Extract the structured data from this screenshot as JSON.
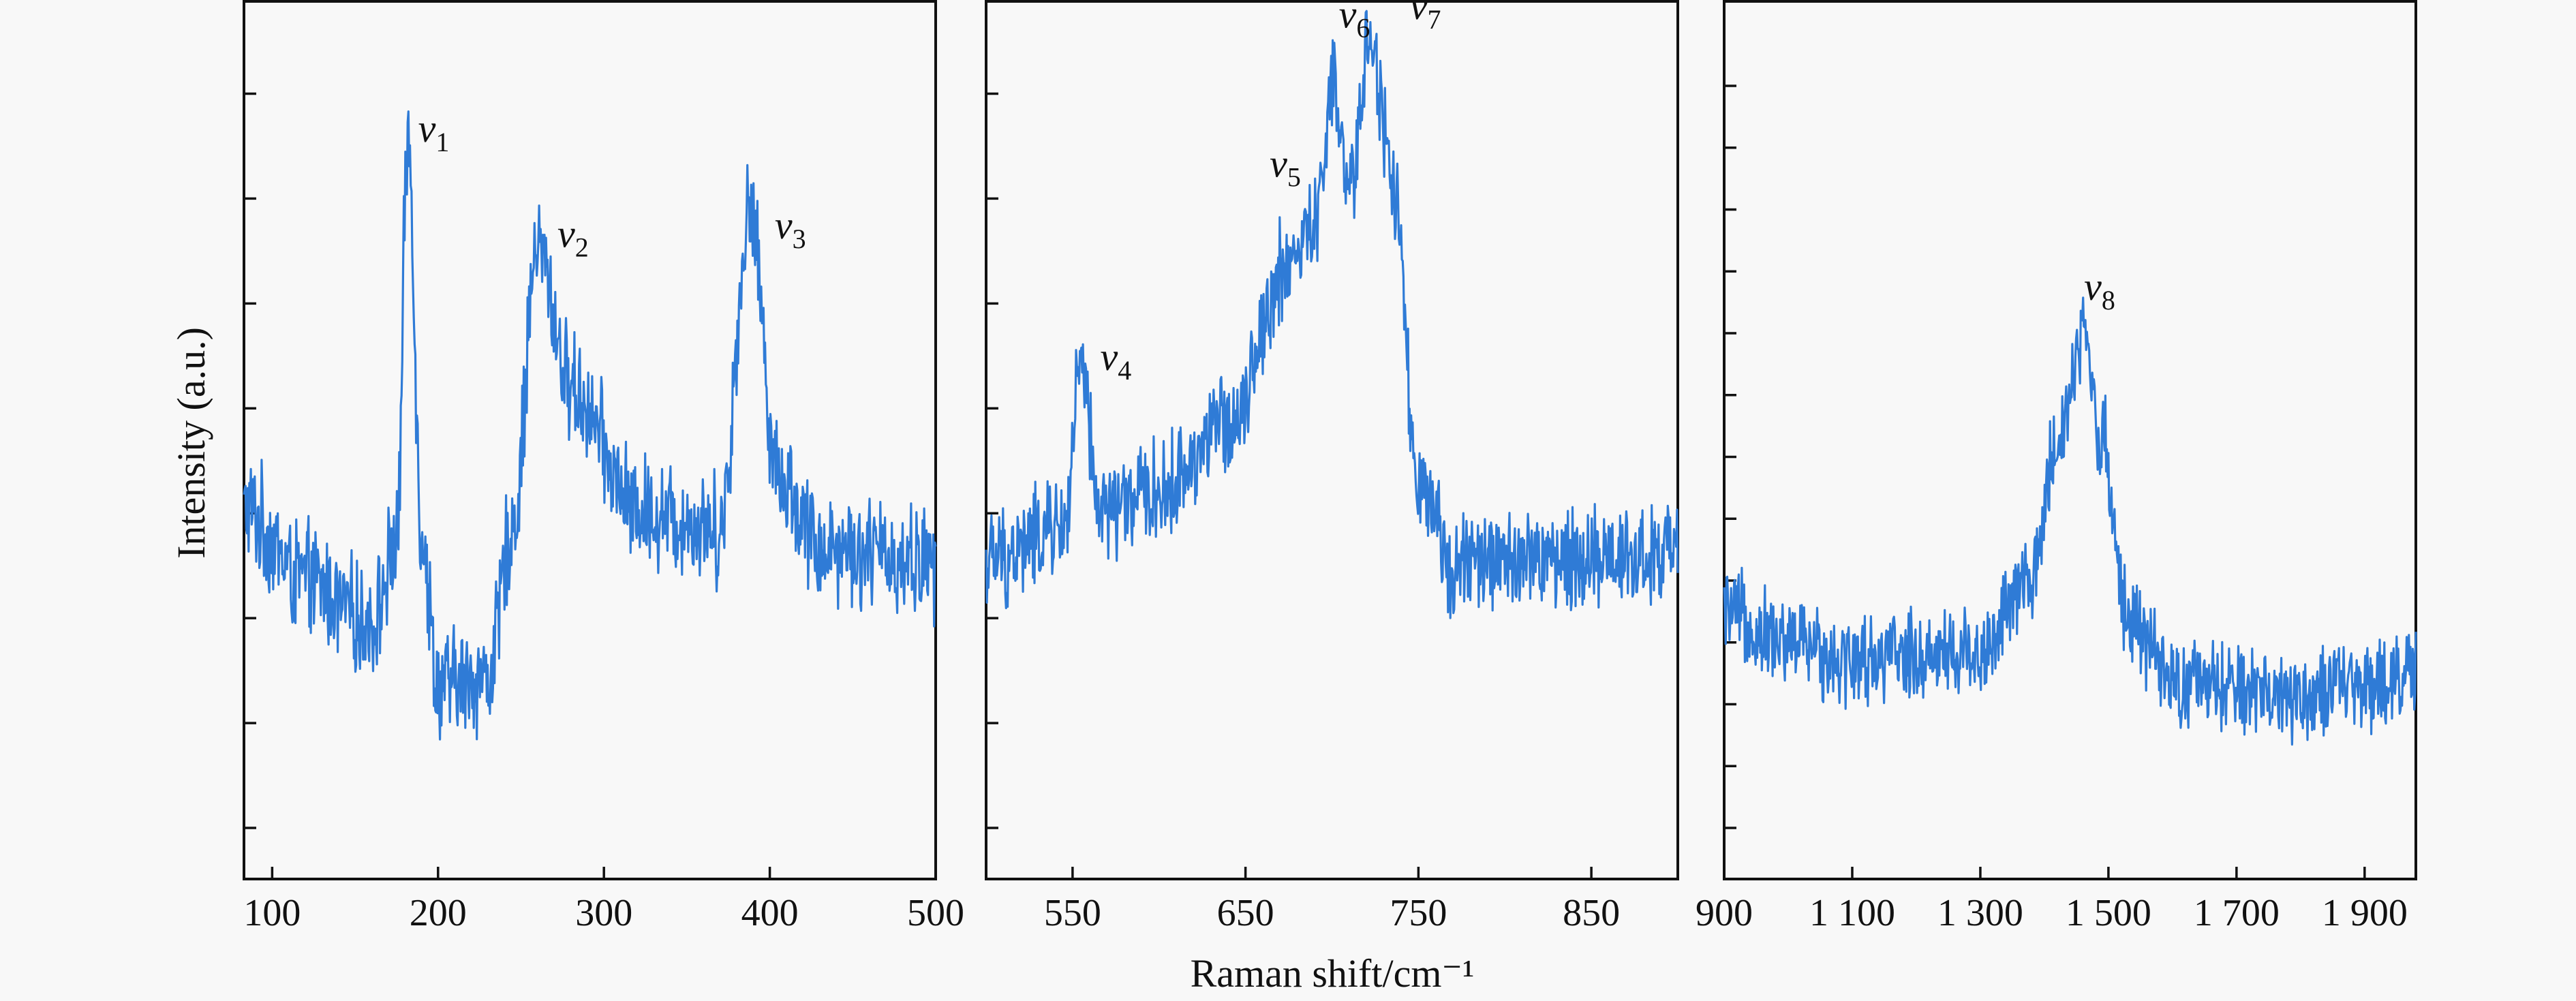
{
  "chart_data": [
    {
      "type": "line",
      "xlim": [
        83,
        500
      ],
      "ylim": [
        0,
        1
      ],
      "xticks": [
        100,
        200,
        300,
        400,
        500
      ],
      "xticklabels": [
        "100",
        "200",
        "300",
        "400",
        "500"
      ],
      "y_tick_count": 8,
      "series_color": "#2f7bd6",
      "baseline": 0.36,
      "noise_amplitude": 0.055,
      "profile": [
        {
          "x": 83,
          "y": 0.42
        },
        {
          "x": 120,
          "y": 0.34
        },
        {
          "x": 160,
          "y": 0.29
        },
        {
          "x": 175,
          "y": 0.38
        },
        {
          "x": 182,
          "y": 0.85
        },
        {
          "x": 190,
          "y": 0.4
        },
        {
          "x": 200,
          "y": 0.22
        },
        {
          "x": 230,
          "y": 0.23
        },
        {
          "x": 245,
          "y": 0.4
        },
        {
          "x": 260,
          "y": 0.72
        },
        {
          "x": 280,
          "y": 0.56
        },
        {
          "x": 320,
          "y": 0.42
        },
        {
          "x": 370,
          "y": 0.4
        },
        {
          "x": 388,
          "y": 0.76
        },
        {
          "x": 405,
          "y": 0.46
        },
        {
          "x": 430,
          "y": 0.38
        },
        {
          "x": 500,
          "y": 0.36
        }
      ],
      "annotations": [
        {
          "symbol": "v",
          "sub": "1",
          "x": 188,
          "y": 0.84
        },
        {
          "symbol": "v",
          "sub": "2",
          "x": 272,
          "y": 0.72
        },
        {
          "symbol": "v",
          "sub": "3",
          "x": 403,
          "y": 0.73
        }
      ]
    },
    {
      "type": "line",
      "xlim": [
        500,
        900
      ],
      "ylim": [
        0,
        1
      ],
      "xticks": [
        550,
        650,
        750,
        850
      ],
      "xticklabels": [
        "550",
        "650",
        "750",
        "850"
      ],
      "y_tick_count": 8,
      "series_color": "#2f7bd6",
      "baseline": 0.36,
      "noise_amplitude": 0.05,
      "profile": [
        {
          "x": 500,
          "y": 0.36
        },
        {
          "x": 545,
          "y": 0.4
        },
        {
          "x": 555,
          "y": 0.58
        },
        {
          "x": 565,
          "y": 0.42
        },
        {
          "x": 600,
          "y": 0.44
        },
        {
          "x": 640,
          "y": 0.52
        },
        {
          "x": 675,
          "y": 0.7
        },
        {
          "x": 690,
          "y": 0.74
        },
        {
          "x": 700,
          "y": 0.9
        },
        {
          "x": 710,
          "y": 0.78
        },
        {
          "x": 722,
          "y": 0.96
        },
        {
          "x": 735,
          "y": 0.8
        },
        {
          "x": 750,
          "y": 0.44
        },
        {
          "x": 770,
          "y": 0.36
        },
        {
          "x": 900,
          "y": 0.37
        }
      ],
      "annotations": [
        {
          "symbol": "v",
          "sub": "4",
          "x": 566,
          "y": 0.58
        },
        {
          "symbol": "v",
          "sub": "5",
          "x": 664,
          "y": 0.8
        },
        {
          "symbol": "v",
          "sub": "6",
          "x": 704,
          "y": 0.97
        },
        {
          "symbol": "v",
          "sub": "7",
          "x": 745,
          "y": 0.98
        }
      ]
    },
    {
      "type": "line",
      "xlim": [
        900,
        1980
      ],
      "ylim": [
        0,
        1
      ],
      "xticks": [
        900,
        1100,
        1300,
        1500,
        1700,
        1900
      ],
      "xticklabels": [
        "900",
        "1 100",
        "1 300",
        "1 500",
        "1 700",
        "1 900"
      ],
      "y_tick_count": 13,
      "series_color": "#2f7bd6",
      "baseline": 0.24,
      "noise_amplitude": 0.045,
      "profile": [
        {
          "x": 900,
          "y": 0.3
        },
        {
          "x": 1000,
          "y": 0.27
        },
        {
          "x": 1100,
          "y": 0.25
        },
        {
          "x": 1300,
          "y": 0.26
        },
        {
          "x": 1380,
          "y": 0.34
        },
        {
          "x": 1420,
          "y": 0.5
        },
        {
          "x": 1460,
          "y": 0.62
        },
        {
          "x": 1490,
          "y": 0.5
        },
        {
          "x": 1530,
          "y": 0.3
        },
        {
          "x": 1600,
          "y": 0.22
        },
        {
          "x": 1800,
          "y": 0.21
        },
        {
          "x": 1980,
          "y": 0.23
        }
      ],
      "annotations": [
        {
          "symbol": "v",
          "sub": "8",
          "x": 1462,
          "y": 0.66
        }
      ]
    }
  ],
  "shared": {
    "ylabel": "Intensity (a.u.)",
    "xlabel": "Raman shift/cm⁻¹"
  }
}
